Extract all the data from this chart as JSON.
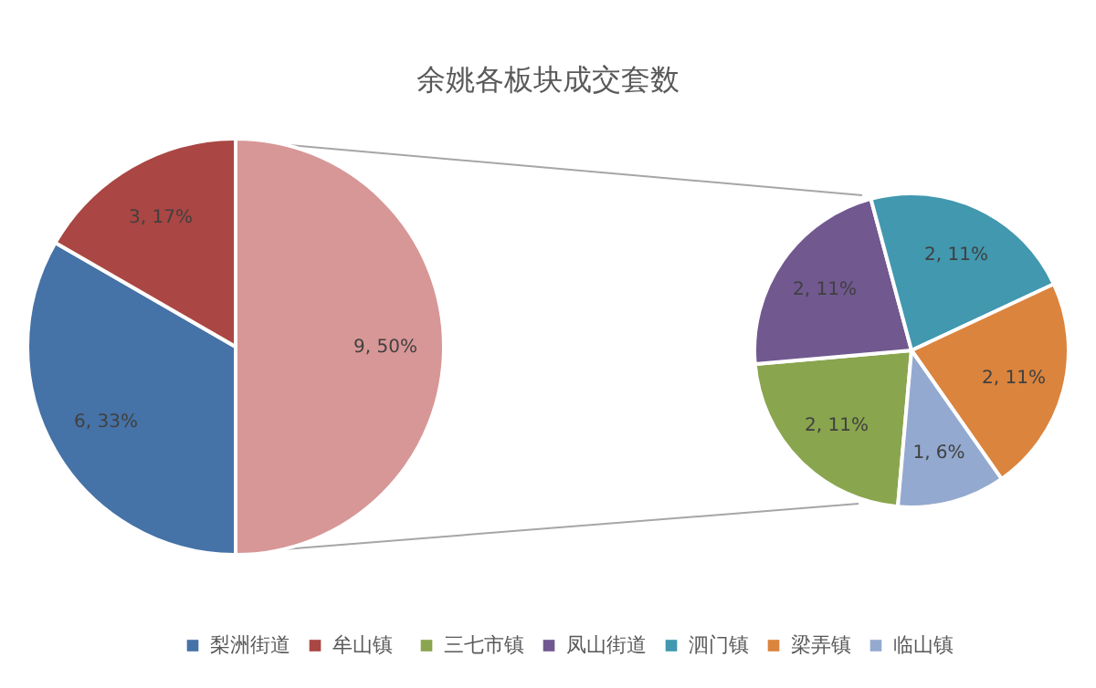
{
  "chart_data": [
    {
      "type": "pie",
      "title": "余姚各板块成交套数",
      "categories": [
        "梨洲街道",
        "牟山镇",
        null
      ],
      "values": [
        6,
        3,
        9
      ],
      "colors": [
        "#4572a7",
        "#aa4643",
        "#d79796"
      ],
      "value_labels": [
        "6, 33%",
        "3, 17%",
        "9, 50%"
      ],
      "legend": "bottom"
    },
    {
      "type": "pie",
      "categories": [
        "三七市镇",
        "凤山街道",
        "泗门镇",
        "梁弄镇",
        "临山镇"
      ],
      "values": [
        2,
        2,
        2,
        2,
        1
      ],
      "colors": [
        "#89a54e",
        "#71588f",
        "#4198af",
        "#db843d",
        "#93a9cf"
      ],
      "value_labels": [
        "2, 11%",
        "2, 11%",
        "2, 11%",
        "2, 11%",
        "1, 6%"
      ],
      "legend": "bottom"
    }
  ]
}
